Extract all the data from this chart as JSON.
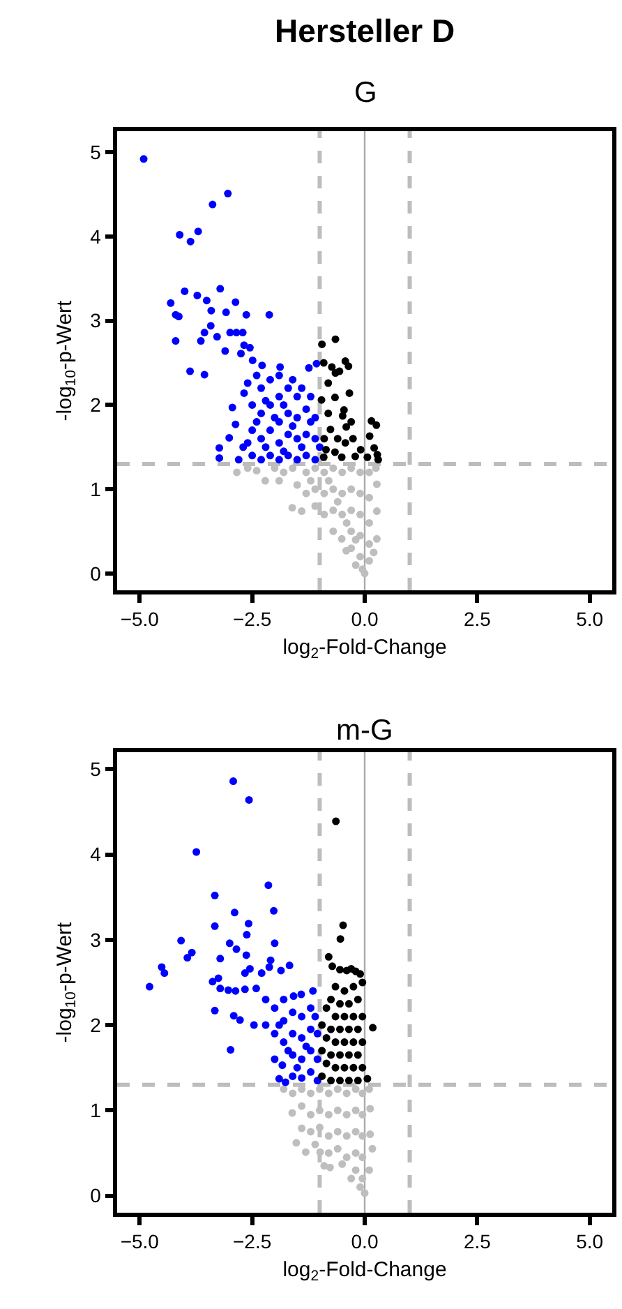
{
  "chart_data": [
    {
      "type": "scatter",
      "title": "Hersteller D",
      "subtitle": "G",
      "xlabel": "log$_{2}$-Fold-Change",
      "ylabel": "-log$_{10}$-p-Wert",
      "xlim": [
        -5.5,
        5.5
      ],
      "ylim": [
        -0.2,
        5.25
      ],
      "xticks": [
        {
          "value": -5,
          "label": "−5.0"
        },
        {
          "value": -2.5,
          "label": "−2.5"
        },
        {
          "value": 0,
          "label": "0.0"
        },
        {
          "value": 2.5,
          "label": "2.5"
        },
        {
          "value": 5,
          "label": "5.0"
        }
      ],
      "yticks": [
        0,
        1,
        2,
        3,
        4,
        5
      ],
      "grid": false,
      "marker": "circle",
      "ref_lines": [
        {
          "axis": "x",
          "value": -1,
          "color": "#bdbdbd",
          "line_style": "dashed"
        },
        {
          "axis": "x",
          "value": 1,
          "color": "#bdbdbd",
          "line_style": "dashed"
        },
        {
          "axis": "y",
          "value": 1.3,
          "color": "#bdbdbd",
          "line_style": "dashed"
        },
        {
          "axis": "x",
          "value": 0,
          "color": "#aaaaaa",
          "line_style": "solid"
        }
      ],
      "series": [
        {
          "color": "#bebebe",
          "x": [
            -2.84,
            -2.21,
            -1.61,
            -1.4,
            -0.51,
            -0.41,
            0.0,
            0.27,
            0.27,
            0.27,
            -2.6,
            -2.4,
            -2.0,
            -1.8,
            -1.6,
            -1.5,
            -1.3,
            -1.3,
            -1.1,
            -1.1,
            -1.1,
            -0.9,
            -0.9,
            -0.9,
            -0.7,
            -0.7,
            -0.7,
            -0.7,
            -0.5,
            -0.5,
            -0.5,
            -0.3,
            -0.3,
            -0.3,
            -0.3,
            -0.3,
            -0.1,
            -0.1,
            -0.1,
            -0.1,
            -0.1,
            0.1,
            0.1,
            0.1,
            0.1,
            0.1,
            -0.2,
            -0.05,
            0.2,
            0.25,
            -0.6,
            -0.4,
            -0.2,
            -0.8,
            -1.2,
            -1.9
          ],
          "values": [
            1.2,
            1.1,
            0.78,
            0.74,
            0.41,
            0.27,
            0.0,
            1.06,
            0.74,
            0.41,
            1.25,
            1.22,
            1.25,
            1.2,
            1.25,
            1.05,
            1.2,
            0.95,
            1.25,
            1.0,
            0.8,
            1.2,
            0.95,
            0.7,
            1.25,
            1.0,
            0.75,
            0.5,
            1.2,
            0.95,
            0.7,
            1.25,
            1.0,
            0.75,
            0.5,
            0.3,
            1.2,
            0.95,
            0.7,
            0.45,
            0.2,
            1.2,
            0.9,
            0.6,
            0.35,
            0.15,
            0.1,
            0.05,
            0.25,
            1.25,
            0.85,
            0.6,
            0.4,
            1.1,
            1.1,
            1.1
          ]
        },
        {
          "color": "#0000ff",
          "x": [
            -4.91,
            -3.04,
            -3.38,
            -3.7,
            -4.11,
            -3.87,
            -3.21,
            -4.0,
            -3.72,
            -4.31,
            -3.51,
            -2.87,
            -4.2,
            -4.13,
            -3.41,
            -3.08,
            -2.12,
            -2.63,
            -4.2,
            -3.64,
            -3.28,
            -3.56,
            -2.99,
            -2.85,
            -2.71,
            -3.42,
            -3.1,
            -2.75,
            -2.55,
            -2.68,
            -3.88,
            -3.56,
            -2.49,
            -2.28,
            -1.88,
            -1.24,
            -1.07,
            -3.23,
            -3.23,
            -3.01,
            -2.87,
            -2.94,
            -2.68,
            -2.6,
            -2.7,
            -2.5,
            -2.5,
            -2.5,
            -2.3,
            -2.3,
            -2.3,
            -2.3,
            -2.1,
            -2.1,
            -2.1,
            -2.1,
            -1.9,
            -1.9,
            -1.9,
            -1.9,
            -1.9,
            -1.7,
            -1.7,
            -1.7,
            -1.7,
            -1.5,
            -1.5,
            -1.5,
            -1.5,
            -1.3,
            -1.3,
            -1.3,
            -1.1,
            -1.1,
            -1.1,
            -2.8,
            -2.6,
            -2.4,
            -2.2,
            -2.0,
            -1.8,
            -1.6,
            -1.4,
            -1.2,
            -2.2,
            -1.8,
            -1.6,
            -1.4,
            -2.4,
            -1.2,
            -1.0
          ],
          "values": [
            4.92,
            4.51,
            4.38,
            4.06,
            4.02,
            3.94,
            3.38,
            3.35,
            3.3,
            3.21,
            3.24,
            3.22,
            3.07,
            3.05,
            3.12,
            3.1,
            3.07,
            3.07,
            2.76,
            2.76,
            2.81,
            2.86,
            2.86,
            2.86,
            2.86,
            2.94,
            2.64,
            2.61,
            2.68,
            2.71,
            2.4,
            2.36,
            2.53,
            2.47,
            2.45,
            2.44,
            2.49,
            1.49,
            1.37,
            1.61,
            1.77,
            1.97,
            2.14,
            2.26,
            1.5,
            1.4,
            1.7,
            2.0,
            1.35,
            1.6,
            1.9,
            2.2,
            1.4,
            1.7,
            2.0,
            2.3,
            1.35,
            1.55,
            1.8,
            2.1,
            2.35,
            1.4,
            1.65,
            1.9,
            2.2,
            1.35,
            1.6,
            1.85,
            2.1,
            1.4,
            1.65,
            1.95,
            1.35,
            1.6,
            1.85,
            1.35,
            1.55,
            1.8,
            1.5,
            1.85,
            1.45,
            1.75,
            1.5,
            1.8,
            2.05,
            2.0,
            2.3,
            2.2,
            2.35,
            2.1,
            1.5
          ]
        },
        {
          "color": "#000000",
          "x": [
            -0.95,
            -0.65,
            -0.91,
            -0.73,
            -0.43,
            -0.36,
            -0.65,
            -0.56,
            -0.81,
            -0.34,
            -0.96,
            -0.66,
            -0.46,
            -0.81,
            -0.49,
            0.15,
            0.26,
            -0.41,
            -0.76,
            -0.26,
            -0.43,
            0.11,
            0.21,
            0.28,
            -0.86,
            -0.66,
            -0.91,
            -0.21,
            -0.51,
            0.06,
            0.3,
            -0.09,
            -0.9,
            -0.6,
            -0.3
          ],
          "values": [
            2.72,
            2.78,
            2.5,
            2.45,
            2.52,
            2.46,
            2.38,
            2.4,
            2.26,
            2.14,
            2.06,
            2.09,
            1.94,
            1.9,
            1.87,
            1.81,
            1.76,
            1.74,
            1.71,
            1.6,
            1.55,
            1.63,
            1.49,
            1.41,
            1.47,
            1.44,
            1.38,
            1.39,
            1.38,
            1.38,
            1.35,
            1.47,
            1.6,
            1.6,
            1.8
          ]
        }
      ]
    },
    {
      "type": "scatter",
      "title": "m-G",
      "xlabel": "log$_{2}$-Fold-Change",
      "ylabel": "-log$_{10}$-p-Wert",
      "xlim": [
        -5.5,
        5.5
      ],
      "ylim": [
        -0.2,
        5.2
      ],
      "xticks": [
        {
          "value": -5,
          "label": "−5.0"
        },
        {
          "value": -2.5,
          "label": "−2.5"
        },
        {
          "value": 0,
          "label": "0.0"
        },
        {
          "value": 2.5,
          "label": "2.5"
        },
        {
          "value": 5,
          "label": "5.0"
        }
      ],
      "yticks": [
        0,
        1,
        2,
        3,
        4,
        5
      ],
      "grid": false,
      "marker": "circle",
      "ref_lines": [
        {
          "axis": "x",
          "value": -1,
          "color": "#bdbdbd",
          "line_style": "dashed"
        },
        {
          "axis": "x",
          "value": 1,
          "color": "#bdbdbd",
          "line_style": "dashed"
        },
        {
          "axis": "y",
          "value": 1.3,
          "color": "#bdbdbd",
          "line_style": "dashed"
        },
        {
          "axis": "x",
          "value": 0,
          "color": "#aaaaaa",
          "line_style": "solid"
        }
      ],
      "series": [
        {
          "color": "#bebebe",
          "x": [
            -1.61,
            -1.4,
            -1.52,
            -1.31,
            -0.99,
            -0.77,
            -0.5,
            0.12,
            0.12,
            0.17,
            0.0,
            -1.8,
            -1.6,
            -1.4,
            -1.4,
            -1.2,
            -1.2,
            -1.2,
            -1.0,
            -1.0,
            -1.0,
            -0.8,
            -0.8,
            -0.8,
            -0.8,
            -0.6,
            -0.6,
            -0.6,
            -0.6,
            -0.4,
            -0.4,
            -0.4,
            -0.4,
            -0.2,
            -0.2,
            -0.2,
            -0.2,
            -0.2,
            -0.05,
            -0.05,
            -0.05,
            -0.05,
            -0.05,
            0.1,
            0.1,
            -0.1,
            -0.3,
            -0.9,
            -1.1
          ],
          "values": [
            0.97,
            0.79,
            0.62,
            0.51,
            0.51,
            0.33,
            0.37,
            1.02,
            0.72,
            0.55,
            0.03,
            1.25,
            1.2,
            1.25,
            1.05,
            1.2,
            0.95,
            0.75,
            1.25,
            1.0,
            0.8,
            1.2,
            0.95,
            0.7,
            0.5,
            1.25,
            1.0,
            0.75,
            0.55,
            1.2,
            0.95,
            0.7,
            0.45,
            1.25,
            1.0,
            0.75,
            0.5,
            0.3,
            1.2,
            0.95,
            0.7,
            0.45,
            0.2,
            1.25,
            0.3,
            0.1,
            0.2,
            0.35,
            0.6
          ]
        },
        {
          "color": "#0000ff",
          "x": [
            -2.92,
            -2.57,
            -3.74,
            -2.14,
            -3.33,
            -2.02,
            -2.89,
            -2.58,
            -3.33,
            -4.08,
            -3.0,
            -2.85,
            -2.62,
            -2.0,
            -3.84,
            -3.94,
            -3.21,
            -2.63,
            -2.09,
            -4.51,
            -2.55,
            -2.12,
            -1.67,
            -4.78,
            -4.45,
            -3.38,
            -3.25,
            -3.21,
            -3.03,
            -2.87,
            -2.66,
            -2.41,
            -2.66,
            -2.29,
            -1.86,
            -3.33,
            -2.91,
            -2.77,
            -2.98,
            -2.46,
            -1.15,
            -1.58,
            -1.41,
            -1.9,
            -1.76,
            -1.83,
            -2.2,
            -2.2,
            -2.0,
            -2.0,
            -2.0,
            -1.8,
            -1.8,
            -1.8,
            -1.6,
            -1.6,
            -1.6,
            -1.6,
            -1.4,
            -1.4,
            -1.4,
            -1.4,
            -1.2,
            -1.2,
            -1.2,
            -1.2,
            -1.05,
            -1.05,
            -1.05,
            -1.3,
            -1.5,
            -1.7,
            -1.9,
            -1.1
          ],
          "values": [
            4.86,
            4.64,
            4.03,
            3.64,
            3.52,
            3.34,
            3.32,
            3.19,
            3.16,
            2.99,
            2.96,
            2.89,
            3.06,
            2.96,
            2.85,
            2.79,
            2.78,
            2.82,
            2.76,
            2.68,
            2.66,
            2.68,
            2.7,
            2.45,
            2.61,
            2.51,
            2.55,
            2.43,
            2.41,
            2.4,
            2.42,
            2.43,
            2.61,
            2.61,
            2.64,
            2.17,
            2.11,
            2.06,
            1.71,
            2.0,
            2.4,
            2.34,
            2.36,
            1.37,
            1.33,
            1.53,
            2.3,
            2.0,
            2.2,
            1.9,
            1.6,
            2.3,
            2.05,
            1.8,
            2.15,
            1.9,
            1.65,
            1.4,
            2.1,
            1.85,
            1.6,
            1.38,
            2.2,
            1.95,
            1.7,
            1.45,
            1.9,
            1.6,
            1.35,
            1.75,
            1.5,
            1.7,
            2.0,
            2.1
          ]
        },
        {
          "color": "#000000",
          "x": [
            -0.64,
            -0.48,
            -0.54,
            -0.8,
            -0.72,
            -0.55,
            -0.4,
            -0.3,
            -0.2,
            -0.1,
            0.18,
            0.06,
            -0.95,
            -0.95,
            -0.95,
            -0.85,
            -0.85,
            -0.85,
            -0.75,
            -0.75,
            -0.75,
            -0.75,
            -0.65,
            -0.65,
            -0.65,
            -0.65,
            -0.55,
            -0.55,
            -0.55,
            -0.55,
            -0.45,
            -0.45,
            -0.45,
            -0.45,
            -0.35,
            -0.35,
            -0.35,
            -0.35,
            -0.25,
            -0.25,
            -0.25,
            -0.25,
            -0.15,
            -0.15,
            -0.15,
            -0.15,
            -0.05,
            -0.05,
            -0.05,
            -0.05
          ],
          "values": [
            4.39,
            3.17,
            3.01,
            2.8,
            2.69,
            2.65,
            2.64,
            2.66,
            2.63,
            2.6,
            1.97,
            1.37,
            1.4,
            1.7,
            2.0,
            1.55,
            1.85,
            2.2,
            1.35,
            1.65,
            1.95,
            2.3,
            1.5,
            1.8,
            2.1,
            2.45,
            1.35,
            1.65,
            1.95,
            2.25,
            1.5,
            1.8,
            2.1,
            2.4,
            1.35,
            1.65,
            1.95,
            2.25,
            1.5,
            1.8,
            2.1,
            2.45,
            1.35,
            1.65,
            1.95,
            2.3,
            1.5,
            1.8,
            2.1,
            2.5
          ]
        }
      ]
    }
  ]
}
